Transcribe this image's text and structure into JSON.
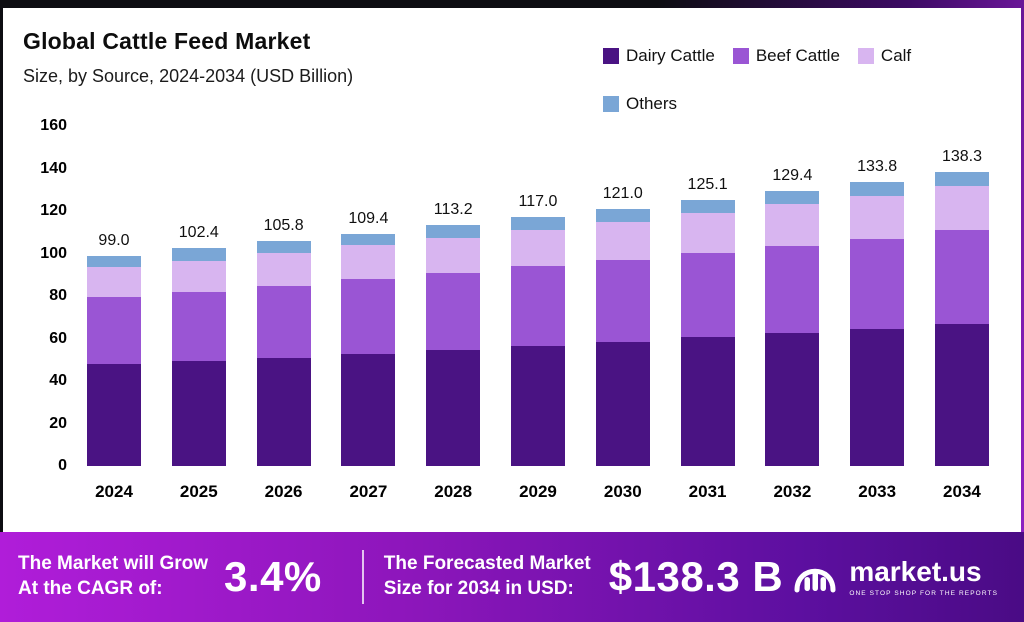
{
  "header": {
    "title": "Global Cattle Feed Market",
    "subtitle": "Size, by Source, 2024-2034 (USD Billion)"
  },
  "legend": [
    {
      "label": "Dairy Cattle",
      "color": "#4a1383"
    },
    {
      "label": "Beef Cattle",
      "color": "#9a55d4"
    },
    {
      "label": "Calf",
      "color": "#d8b5f0"
    },
    {
      "label": "Others",
      "color": "#7aa6d6"
    }
  ],
  "chart_data": {
    "type": "bar",
    "stacked": true,
    "title": "Global Cattle Feed Market Size, by Source, 2024-2034 (USD Billion)",
    "xlabel": "",
    "ylabel": "USD Billion",
    "ylim": [
      0,
      160
    ],
    "yticks": [
      0,
      20,
      40,
      60,
      80,
      100,
      120,
      140,
      160
    ],
    "grid": false,
    "legend_position": "top-right",
    "categories": [
      "2024",
      "2025",
      "2026",
      "2027",
      "2028",
      "2029",
      "2030",
      "2031",
      "2032",
      "2033",
      "2034"
    ],
    "totals": [
      "99.0",
      "102.4",
      "105.8",
      "109.4",
      "113.2",
      "117.0",
      "121.0",
      "125.1",
      "129.4",
      "133.8",
      "138.3"
    ],
    "series": [
      {
        "name": "Dairy Cattle",
        "color": "#4a1383",
        "values": [
          48.0,
          49.5,
          51.0,
          52.8,
          54.5,
          56.5,
          58.5,
          60.5,
          62.5,
          64.5,
          67.0
        ]
      },
      {
        "name": "Beef Cattle",
        "color": "#9a55d4",
        "values": [
          31.5,
          32.6,
          33.8,
          35.0,
          36.5,
          37.5,
          38.5,
          39.6,
          41.0,
          42.5,
          44.0
        ]
      },
      {
        "name": "Calf",
        "color": "#d8b5f0",
        "values": [
          14.0,
          14.6,
          15.5,
          16.0,
          16.5,
          17.0,
          18.0,
          19.0,
          19.9,
          20.3,
          20.8
        ]
      },
      {
        "name": "Others",
        "color": "#7aa6d6",
        "values": [
          5.5,
          5.7,
          5.5,
          5.6,
          5.7,
          6.0,
          6.0,
          6.0,
          6.0,
          6.5,
          6.5
        ]
      }
    ]
  },
  "footer": {
    "cagr_label_line1": "The Market will Grow",
    "cagr_label_line2": "At the CAGR of:",
    "cagr_value": "3.4%",
    "forecast_label_line1": "The Forecasted Market",
    "forecast_label_line2": "Size for 2034 in USD:",
    "forecast_value": "$138.3 B",
    "brand": {
      "name": "market.us",
      "tagline": "ONE STOP SHOP FOR THE REPORTS"
    }
  }
}
